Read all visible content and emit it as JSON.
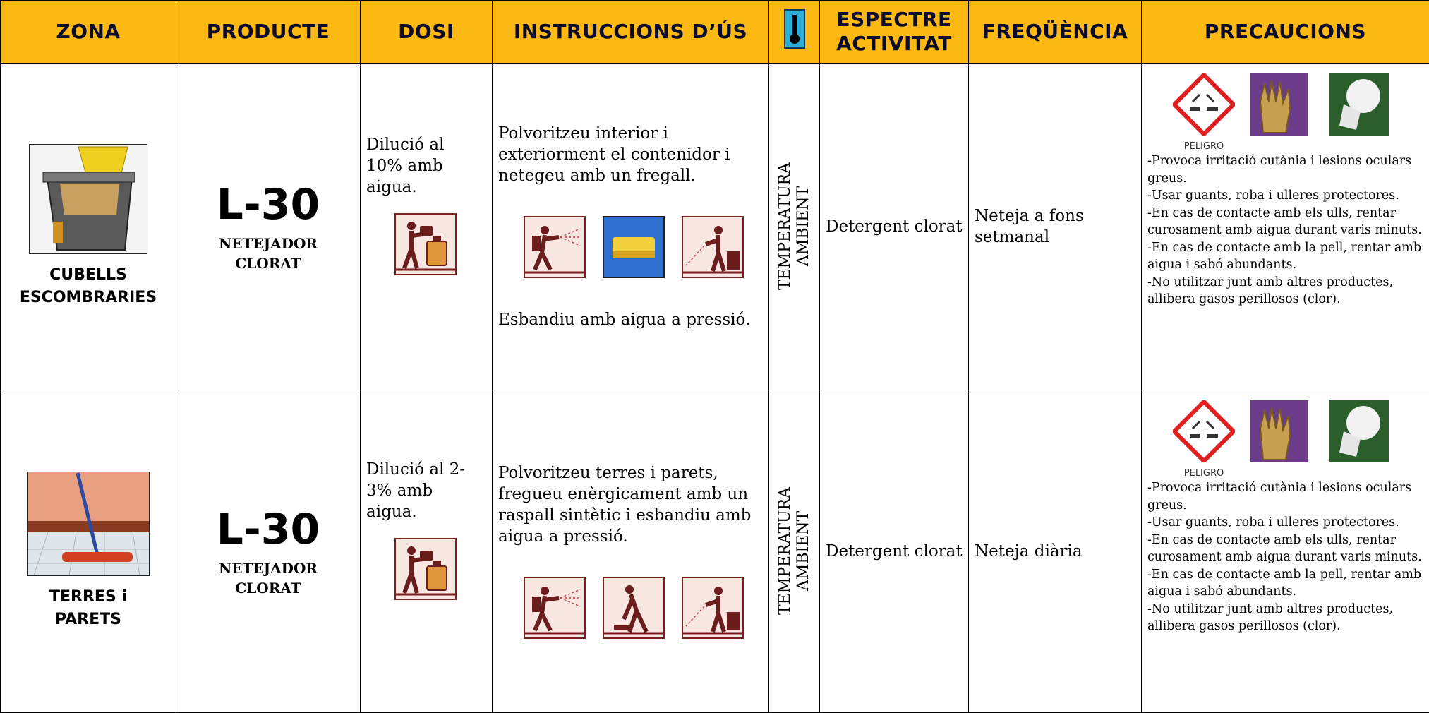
{
  "header": {
    "zona": "ZONA",
    "producte": "PRODUCTE",
    "dosi": "DOSI",
    "instruccions": "INSTRUCCIONS D’ÚS",
    "espectre": [
      "ESPECTRE",
      "ACTIVITAT"
    ],
    "frequencia": "FREQÜÈNCIA",
    "precaucions": "PRECAUCIONS"
  },
  "rows": [
    {
      "zona": [
        "CUBELLS",
        "ESCOMBRARIES"
      ],
      "producte": "L-30",
      "tipus": [
        "NETEJADOR",
        "CLORAT"
      ],
      "dosi": "Dilució al 10% amb aigua.",
      "instruccions": [
        "Polvoritzeu interior i exteriorment el contenidor i netegeu amb un fregall.",
        "Esbandiu amb aigua a pressió."
      ],
      "temperatura": [
        "TEMPERATURA",
        "AMBIENT"
      ],
      "espectre": "Detergent clorat",
      "frequencia": "Neteja a fons setmanal",
      "precaucions": {
        "etiqueta": "PELIGRO",
        "items": [
          "-Provoca irritació cutània i lesions oculars greus.",
          "-Usar guants, roba i ulleres protectores.",
          "-En cas de contacte amb els ulls, rentar curosament amb aigua durant varis minuts.",
          "-En cas de contacte amb la pell, rentar amb aigua i sabó abundants.",
          "-No utilitzar junt amb altres productes, allibera gasos perillosos (clor)."
        ]
      }
    },
    {
      "zona": [
        "TERRES i",
        "PARETS"
      ],
      "producte": "L-30",
      "tipus": [
        "NETEJADOR",
        "CLORAT"
      ],
      "dosi": "Dilució al 2-3% amb aigua.",
      "instruccions": [
        "Polvoritzeu terres i parets, fregueu enèrgicament amb un raspall sintètic i esbandiu amb aigua a pressió."
      ],
      "temperatura": [
        "TEMPERATURA",
        "AMBIENT"
      ],
      "espectre": "Detergent clorat",
      "frequencia": "Neteja diària",
      "precaucions": {
        "etiqueta": "PELIGRO",
        "items": [
          "-Provoca irritació cutània i lesions oculars greus.",
          "-Usar guants, roba i ulleres protectores.",
          "-En cas de contacte amb els ulls, rentar curosament amb aigua durant varis minuts.",
          "-En cas de contacte amb la pell, rentar amb aigua i sabó abundants.",
          "-No utilitzar junt amb altres productes, allibera gasos perillosos (clor)."
        ]
      }
    }
  ]
}
